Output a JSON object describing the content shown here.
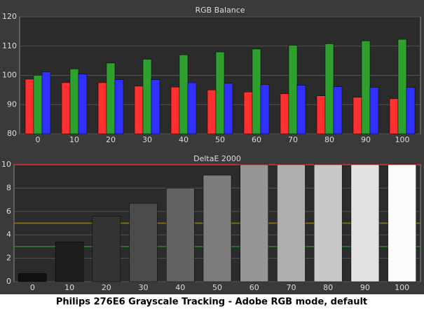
{
  "caption": "Philips 276E6 Grayscale Tracking - Adobe RGB mode, default",
  "chart_data": [
    {
      "type": "grouped-bar",
      "title": "RGB Balance",
      "categories": [
        "0",
        "10",
        "20",
        "30",
        "40",
        "50",
        "60",
        "70",
        "80",
        "90",
        "100"
      ],
      "series": [
        {
          "name": "Red",
          "color": "#ff3030",
          "values": [
            98.7,
            97.5,
            97.5,
            96.3,
            96,
            95,
            94.3,
            93.7,
            93,
            92.5,
            92
          ]
        },
        {
          "name": "Green",
          "color": "#2ea02e",
          "values": [
            100,
            102.2,
            104.2,
            105.5,
            107,
            108,
            109,
            110.3,
            110.8,
            111.8,
            112.3
          ]
        },
        {
          "name": "Blue",
          "color": "#3030ff",
          "values": [
            101.2,
            100.4,
            98.5,
            98.5,
            97.5,
            97.3,
            96.8,
            96.6,
            96.1,
            95.9,
            95.9
          ]
        }
      ],
      "ylim": [
        80,
        120
      ],
      "yticks": [
        80,
        90,
        100,
        110,
        120
      ],
      "grid": true
    },
    {
      "type": "bar",
      "title": "DeltaE 2000",
      "categories": [
        "0",
        "10",
        "20",
        "30",
        "40",
        "50",
        "60",
        "70",
        "80",
        "90",
        "100"
      ],
      "values": [
        0.7,
        3.4,
        5.6,
        6.7,
        8.0,
        9.1,
        10,
        10,
        10,
        10,
        10
      ],
      "colors": [
        "#111111",
        "#1c1c1c",
        "#333333",
        "#4a4a4a",
        "#636363",
        "#7c7c7c",
        "#969696",
        "#afafaf",
        "#c8c8c8",
        "#e2e2e2",
        "#fbfbfb"
      ],
      "reference_lines": [
        {
          "value": 10,
          "color": "#e03030"
        },
        {
          "value": 5,
          "color": "#8a7a30"
        },
        {
          "value": 3,
          "color": "#2a8a2a"
        }
      ],
      "ylim": [
        0,
        10
      ],
      "yticks": [
        0,
        2,
        4,
        6,
        8,
        10
      ],
      "grid": true
    }
  ]
}
